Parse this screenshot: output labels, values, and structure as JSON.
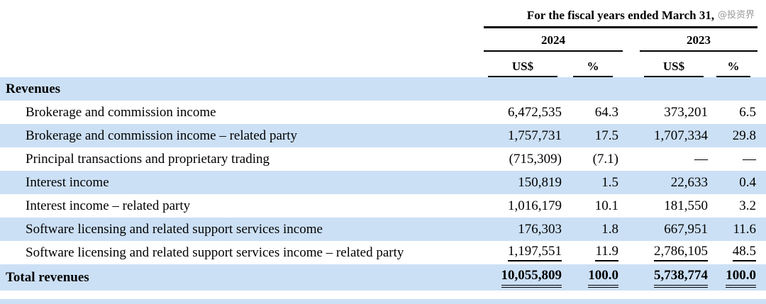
{
  "watermark": "@投资界",
  "header": {
    "title": "For the fiscal years ended March 31,",
    "year_2024": "2024",
    "year_2023": "2023",
    "currency_label": "US$",
    "percent_label": "%"
  },
  "section": {
    "revenues_label": "Revenues"
  },
  "rows": [
    {
      "label": "Brokerage and commission income",
      "us_2024": "6,472,535",
      "pct_2024": "64.3",
      "us_2023": "373,201",
      "pct_2023": "6.5"
    },
    {
      "label": "Brokerage and commission income – related party",
      "us_2024": "1,757,731",
      "pct_2024": "17.5",
      "us_2023": "1,707,334",
      "pct_2023": "29.8"
    },
    {
      "label": "Principal transactions and proprietary trading",
      "us_2024": "(715,309)",
      "pct_2024": "(7.1)",
      "us_2023": "—",
      "pct_2023": "—"
    },
    {
      "label": "Interest income",
      "us_2024": "150,819",
      "pct_2024": "1.5",
      "us_2023": "22,633",
      "pct_2023": "0.4"
    },
    {
      "label": "Interest income – related party",
      "us_2024": "1,016,179",
      "pct_2024": "10.1",
      "us_2023": "181,550",
      "pct_2023": "3.2"
    },
    {
      "label": "Software licensing and related support services income",
      "us_2024": "176,303",
      "pct_2024": "1.8",
      "us_2023": "667,951",
      "pct_2023": "11.6"
    },
    {
      "label": "Software licensing and related support services income – related party",
      "us_2024": "1,197,551",
      "pct_2024": "11.9",
      "us_2023": "2,786,105",
      "pct_2023": "48.5"
    }
  ],
  "total": {
    "label": "Total revenues",
    "us_2024": "10,055,809",
    "pct_2024": "100.0",
    "us_2023": "5,738,774",
    "pct_2023": "100.0"
  },
  "colors": {
    "stripe": "#cce0f5"
  }
}
